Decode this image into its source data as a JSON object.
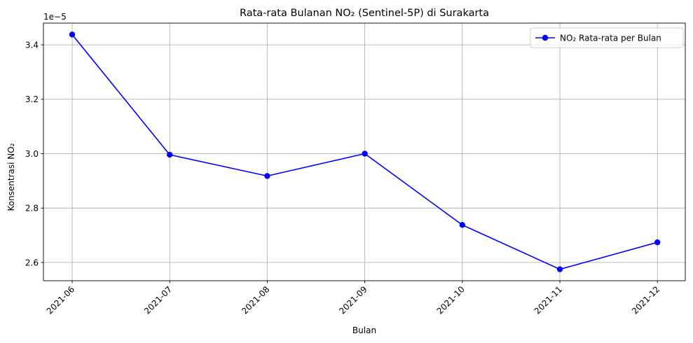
{
  "chart_data": {
    "type": "line",
    "title": "Rata-rata Bulanan NO₂ (Sentinel-5P) di Surakarta",
    "xlabel": "Bulan",
    "ylabel": "Konsentrasi NO₂",
    "y_offset_label": "1e−5",
    "categories": [
      "2021-06",
      "2021-07",
      "2021-08",
      "2021-09",
      "2021-10",
      "2021-11",
      "2021-12"
    ],
    "series": [
      {
        "name": "NO₂ Rata-rata per Bulan",
        "color": "#0000ff",
        "marker": "circle",
        "values": [
          3.438e-05,
          2.996e-05,
          2.918e-05,
          3e-05,
          2.738e-05,
          2.575e-05,
          2.674e-05
        ]
      }
    ],
    "ylim": [
      2.533e-05,
      3.48e-05
    ],
    "yticks": [
      2.6e-05,
      2.8e-05,
      3e-05,
      3.2e-05,
      3.4e-05
    ],
    "ytick_labels": [
      "2.6",
      "2.8",
      "3.0",
      "3.2",
      "3.4"
    ],
    "grid": true,
    "legend_position": "top-right"
  }
}
